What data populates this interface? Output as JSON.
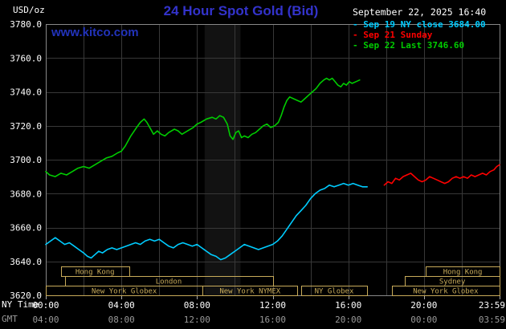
{
  "header": {
    "title": "24 Hour Spot Gold (Bid)",
    "datetime": "September 22, 2025 16:40",
    "website": "www.kitco.com"
  },
  "chart_data": {
    "type": "line",
    "title": "24 Hour Spot Gold (Bid)",
    "x_axis": {
      "label_ny": "NY Time",
      "label_gmt": "GMT",
      "range_hours": [
        0,
        24
      ],
      "ticks_hours": [
        0,
        4,
        8,
        12,
        16,
        20,
        24
      ],
      "tick_labels_ny": [
        "00:00",
        "04:00",
        "08:00",
        "12:00",
        "16:00",
        "20:00",
        "23:59"
      ],
      "tick_labels_gmt": [
        "04:00",
        "08:00",
        "12:00",
        "16:00",
        "20:00",
        "00:00",
        "03:59"
      ]
    },
    "y_axis": {
      "units": "USD/oz",
      "range": [
        3620,
        3780
      ],
      "tick_step": 20,
      "tick_labels": [
        "3620.0",
        "3640.0",
        "3660.0",
        "3680.0",
        "3700.0",
        "3720.0",
        "3740.0",
        "3760.0",
        "3780.0"
      ]
    },
    "grid": {
      "x_step_hours": 2,
      "y_step": 20,
      "color": "#383838"
    },
    "highlight_band_hours": [
      8.4,
      10.3
    ],
    "colors": {
      "border": "#888888",
      "session": "#c8ab5a",
      "tick_label": "#ffffff",
      "gmt_label": "#999999",
      "tick_mark": "#aaaaaa"
    },
    "series": [
      {
        "name": "Sep 19 NY close 3684.00",
        "color": "#00ccff",
        "points": [
          [
            0,
            3650
          ],
          [
            0.25,
            3652
          ],
          [
            0.5,
            3654
          ],
          [
            0.75,
            3652
          ],
          [
            1,
            3650
          ],
          [
            1.25,
            3651
          ],
          [
            1.5,
            3649
          ],
          [
            1.75,
            3647
          ],
          [
            2,
            3645
          ],
          [
            2.2,
            3643
          ],
          [
            2.4,
            3642
          ],
          [
            2.6,
            3644
          ],
          [
            2.8,
            3646
          ],
          [
            3,
            3645
          ],
          [
            3.25,
            3647
          ],
          [
            3.5,
            3648
          ],
          [
            3.75,
            3647
          ],
          [
            4,
            3648
          ],
          [
            4.25,
            3649
          ],
          [
            4.5,
            3650
          ],
          [
            4.75,
            3651
          ],
          [
            5,
            3650
          ],
          [
            5.25,
            3652
          ],
          [
            5.5,
            3653
          ],
          [
            5.75,
            3652
          ],
          [
            6,
            3653
          ],
          [
            6.25,
            3651
          ],
          [
            6.5,
            3649
          ],
          [
            6.75,
            3648
          ],
          [
            7,
            3650
          ],
          [
            7.25,
            3651
          ],
          [
            7.5,
            3650
          ],
          [
            7.75,
            3649
          ],
          [
            8,
            3650
          ],
          [
            8.25,
            3648
          ],
          [
            8.5,
            3646
          ],
          [
            8.75,
            3644
          ],
          [
            9,
            3643
          ],
          [
            9.25,
            3641
          ],
          [
            9.5,
            3642
          ],
          [
            9.75,
            3644
          ],
          [
            10,
            3646
          ],
          [
            10.25,
            3648
          ],
          [
            10.5,
            3650
          ],
          [
            10.75,
            3649
          ],
          [
            11,
            3648
          ],
          [
            11.25,
            3647
          ],
          [
            11.5,
            3648
          ],
          [
            11.75,
            3649
          ],
          [
            12,
            3650
          ],
          [
            12.25,
            3652
          ],
          [
            12.5,
            3655
          ],
          [
            12.75,
            3659
          ],
          [
            13,
            3663
          ],
          [
            13.25,
            3667
          ],
          [
            13.5,
            3670
          ],
          [
            13.75,
            3673
          ],
          [
            14,
            3677
          ],
          [
            14.25,
            3680
          ],
          [
            14.5,
            3682
          ],
          [
            14.75,
            3683
          ],
          [
            15,
            3685
          ],
          [
            15.25,
            3684
          ],
          [
            15.5,
            3685
          ],
          [
            15.75,
            3686
          ],
          [
            16,
            3685
          ],
          [
            16.25,
            3686
          ],
          [
            16.5,
            3685
          ],
          [
            16.75,
            3684
          ],
          [
            17,
            3684
          ]
        ]
      },
      {
        "name": "Sep 21 Sunday",
        "color": "#ff0000",
        "points": [
          [
            17.9,
            3685
          ],
          [
            18.1,
            3687
          ],
          [
            18.3,
            3686
          ],
          [
            18.5,
            3689
          ],
          [
            18.7,
            3688
          ],
          [
            18.9,
            3690
          ],
          [
            19.1,
            3691
          ],
          [
            19.3,
            3692
          ],
          [
            19.5,
            3690
          ],
          [
            19.7,
            3688
          ],
          [
            19.9,
            3687
          ],
          [
            20.1,
            3688
          ],
          [
            20.3,
            3690
          ],
          [
            20.5,
            3689
          ],
          [
            20.7,
            3688
          ],
          [
            20.9,
            3687
          ],
          [
            21.1,
            3686
          ],
          [
            21.3,
            3687
          ],
          [
            21.5,
            3689
          ],
          [
            21.7,
            3690
          ],
          [
            21.9,
            3689
          ],
          [
            22.1,
            3690
          ],
          [
            22.3,
            3689
          ],
          [
            22.5,
            3691
          ],
          [
            22.7,
            3690
          ],
          [
            22.9,
            3691
          ],
          [
            23.1,
            3692
          ],
          [
            23.3,
            3691
          ],
          [
            23.5,
            3693
          ],
          [
            23.7,
            3694
          ],
          [
            23.85,
            3696
          ],
          [
            24,
            3697
          ]
        ]
      },
      {
        "name": "Sep 22 Last 3746.60",
        "color": "#00cc00",
        "points": [
          [
            0,
            3693
          ],
          [
            0.2,
            3691
          ],
          [
            0.5,
            3690
          ],
          [
            0.8,
            3692
          ],
          [
            1.1,
            3691
          ],
          [
            1.4,
            3693
          ],
          [
            1.7,
            3695
          ],
          [
            2,
            3696
          ],
          [
            2.3,
            3695
          ],
          [
            2.6,
            3697
          ],
          [
            2.9,
            3699
          ],
          [
            3.2,
            3701
          ],
          [
            3.5,
            3702
          ],
          [
            3.8,
            3704
          ],
          [
            4,
            3705
          ],
          [
            4.2,
            3708
          ],
          [
            4.5,
            3714
          ],
          [
            4.8,
            3719
          ],
          [
            5,
            3722
          ],
          [
            5.2,
            3724
          ],
          [
            5.35,
            3722
          ],
          [
            5.5,
            3719
          ],
          [
            5.7,
            3715
          ],
          [
            5.9,
            3717
          ],
          [
            6.1,
            3715
          ],
          [
            6.3,
            3714
          ],
          [
            6.5,
            3716
          ],
          [
            6.8,
            3718
          ],
          [
            7,
            3717
          ],
          [
            7.2,
            3715
          ],
          [
            7.5,
            3717
          ],
          [
            7.8,
            3719
          ],
          [
            8,
            3721
          ],
          [
            8.2,
            3722
          ],
          [
            8.5,
            3724
          ],
          [
            8.8,
            3725
          ],
          [
            9,
            3724
          ],
          [
            9.2,
            3726
          ],
          [
            9.4,
            3725
          ],
          [
            9.6,
            3721
          ],
          [
            9.75,
            3714
          ],
          [
            9.9,
            3712
          ],
          [
            10.05,
            3716
          ],
          [
            10.2,
            3717
          ],
          [
            10.35,
            3713
          ],
          [
            10.5,
            3714
          ],
          [
            10.7,
            3713
          ],
          [
            10.9,
            3715
          ],
          [
            11.1,
            3716
          ],
          [
            11.3,
            3718
          ],
          [
            11.5,
            3720
          ],
          [
            11.7,
            3721
          ],
          [
            11.9,
            3719
          ],
          [
            12.1,
            3720
          ],
          [
            12.3,
            3722
          ],
          [
            12.45,
            3726
          ],
          [
            12.6,
            3731
          ],
          [
            12.75,
            3735
          ],
          [
            12.9,
            3737
          ],
          [
            13.1,
            3736
          ],
          [
            13.3,
            3735
          ],
          [
            13.5,
            3734
          ],
          [
            13.7,
            3736
          ],
          [
            13.9,
            3738
          ],
          [
            14.1,
            3740
          ],
          [
            14.3,
            3742
          ],
          [
            14.5,
            3745
          ],
          [
            14.7,
            3747
          ],
          [
            14.85,
            3748
          ],
          [
            15,
            3747
          ],
          [
            15.15,
            3748
          ],
          [
            15.3,
            3746
          ],
          [
            15.45,
            3744
          ],
          [
            15.6,
            3743
          ],
          [
            15.75,
            3745
          ],
          [
            15.9,
            3744
          ],
          [
            16.05,
            3746
          ],
          [
            16.2,
            3745
          ],
          [
            16.4,
            3746
          ],
          [
            16.6,
            3747
          ]
        ]
      }
    ],
    "sessions": [
      {
        "row": 0,
        "label": "Hong Kong",
        "start": 0.8,
        "end": 4.4
      },
      {
        "row": 0,
        "label": "Hong Kong",
        "start": 20.1,
        "end": 24
      },
      {
        "row": 1,
        "label": "London",
        "start": 1.0,
        "end": 12.0
      },
      {
        "row": 1,
        "label": "Sydney",
        "start": 19.0,
        "end": 24
      },
      {
        "row": 2,
        "label": "New York Globex",
        "start": 0,
        "end": 8.3
      },
      {
        "row": 2,
        "label": "New York NYMEX",
        "start": 8.3,
        "end": 13.3
      },
      {
        "row": 2,
        "label": "NY Globex",
        "start": 13.5,
        "end": 17.0
      },
      {
        "row": 2,
        "label": "New York Globex",
        "start": 18.3,
        "end": 24
      }
    ]
  }
}
